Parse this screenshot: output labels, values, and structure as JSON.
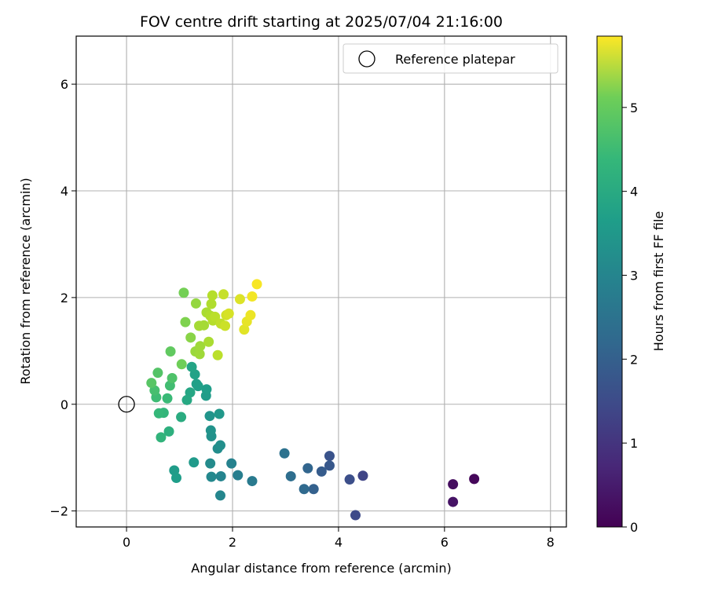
{
  "chart_data": {
    "type": "scatter",
    "title": "FOV centre drift starting at 2025/07/04 21:16:00",
    "xlabel": "Angular distance from reference (arcmin)",
    "ylabel": "Rotation from reference (arcmin)",
    "xlim": [
      -0.95,
      8.3
    ],
    "ylim": [
      -2.3,
      6.9
    ],
    "xticks": [
      0,
      2,
      4,
      6,
      8
    ],
    "yticks": [
      -2,
      0,
      2,
      4,
      6
    ],
    "grid": true,
    "legend": {
      "position": "top-right",
      "entries": [
        "Reference platepar"
      ]
    },
    "reference_point": {
      "x": 0,
      "y": 0
    },
    "colorbar": {
      "label": "Hours from first FF file",
      "colormap": "viridis",
      "range": [
        0,
        5.85
      ],
      "ticks": [
        0,
        1,
        2,
        3,
        4,
        5
      ]
    },
    "points": [
      {
        "x": 6.56,
        "y": -1.4,
        "c": 0.1
      },
      {
        "x": 6.16,
        "y": -1.5,
        "c": 0.2
      },
      {
        "x": 6.16,
        "y": -1.83,
        "c": 0.3
      },
      {
        "x": 4.46,
        "y": -1.34,
        "c": 1.2
      },
      {
        "x": 4.32,
        "y": -2.08,
        "c": 1.3
      },
      {
        "x": 4.21,
        "y": -1.41,
        "c": 1.4
      },
      {
        "x": 3.83,
        "y": -0.97,
        "c": 1.5
      },
      {
        "x": 3.83,
        "y": -1.15,
        "c": 1.6
      },
      {
        "x": 3.68,
        "y": -1.26,
        "c": 1.7
      },
      {
        "x": 3.53,
        "y": -1.59,
        "c": 1.8
      },
      {
        "x": 3.42,
        "y": -1.2,
        "c": 1.9
      },
      {
        "x": 3.35,
        "y": -1.59,
        "c": 2.0
      },
      {
        "x": 3.1,
        "y": -1.35,
        "c": 2.1
      },
      {
        "x": 2.98,
        "y": -0.92,
        "c": 2.2
      },
      {
        "x": 2.37,
        "y": -1.44,
        "c": 2.4
      },
      {
        "x": 2.1,
        "y": -1.33,
        "c": 2.5
      },
      {
        "x": 1.98,
        "y": -1.11,
        "c": 2.6
      },
      {
        "x": 1.78,
        "y": -1.35,
        "c": 2.65
      },
      {
        "x": 1.77,
        "y": -1.71,
        "c": 2.7
      },
      {
        "x": 1.6,
        "y": -1.36,
        "c": 2.75
      },
      {
        "x": 1.58,
        "y": -1.11,
        "c": 2.8
      },
      {
        "x": 1.72,
        "y": -0.83,
        "c": 2.85
      },
      {
        "x": 1.77,
        "y": -0.77,
        "c": 2.9
      },
      {
        "x": 1.6,
        "y": -0.6,
        "c": 2.95
      },
      {
        "x": 1.59,
        "y": -0.49,
        "c": 3.0
      },
      {
        "x": 1.57,
        "y": -0.22,
        "c": 3.05
      },
      {
        "x": 1.75,
        "y": -0.18,
        "c": 3.1
      },
      {
        "x": 1.27,
        "y": -1.09,
        "c": 3.15
      },
      {
        "x": 0.9,
        "y": -1.24,
        "c": 3.2
      },
      {
        "x": 0.94,
        "y": -1.38,
        "c": 3.25
      },
      {
        "x": 1.5,
        "y": 0.16,
        "c": 3.2
      },
      {
        "x": 1.51,
        "y": 0.28,
        "c": 3.25
      },
      {
        "x": 1.32,
        "y": 0.38,
        "c": 3.3
      },
      {
        "x": 1.35,
        "y": 0.34,
        "c": 3.3
      },
      {
        "x": 1.29,
        "y": 0.56,
        "c": 3.35
      },
      {
        "x": 1.23,
        "y": 0.7,
        "c": 3.4
      },
      {
        "x": 1.2,
        "y": 0.22,
        "c": 3.45
      },
      {
        "x": 1.14,
        "y": 0.08,
        "c": 3.5
      },
      {
        "x": 1.03,
        "y": -0.24,
        "c": 3.6
      },
      {
        "x": 0.8,
        "y": -0.51,
        "c": 3.7
      },
      {
        "x": 0.65,
        "y": -0.62,
        "c": 3.8
      },
      {
        "x": 0.7,
        "y": -0.16,
        "c": 3.85
      },
      {
        "x": 0.61,
        "y": -0.17,
        "c": 3.9
      },
      {
        "x": 0.77,
        "y": 0.11,
        "c": 3.95
      },
      {
        "x": 0.56,
        "y": 0.13,
        "c": 4.0
      },
      {
        "x": 0.82,
        "y": 0.35,
        "c": 4.05
      },
      {
        "x": 0.53,
        "y": 0.26,
        "c": 4.1
      },
      {
        "x": 0.86,
        "y": 0.49,
        "c": 4.2
      },
      {
        "x": 0.59,
        "y": 0.59,
        "c": 4.25
      },
      {
        "x": 0.47,
        "y": 0.4,
        "c": 4.3
      },
      {
        "x": 0.83,
        "y": 0.99,
        "c": 4.4
      },
      {
        "x": 1.04,
        "y": 0.75,
        "c": 4.55
      },
      {
        "x": 1.08,
        "y": 2.09,
        "c": 4.6
      },
      {
        "x": 1.11,
        "y": 1.54,
        "c": 4.7
      },
      {
        "x": 1.21,
        "y": 1.25,
        "c": 4.8
      },
      {
        "x": 1.31,
        "y": 1.89,
        "c": 4.9
      },
      {
        "x": 1.3,
        "y": 0.99,
        "c": 4.95
      },
      {
        "x": 1.38,
        "y": 0.94,
        "c": 5.0
      },
      {
        "x": 1.39,
        "y": 1.09,
        "c": 5.0
      },
      {
        "x": 1.37,
        "y": 1.47,
        "c": 5.05
      },
      {
        "x": 1.46,
        "y": 1.48,
        "c": 5.05
      },
      {
        "x": 1.55,
        "y": 1.17,
        "c": 5.1
      },
      {
        "x": 1.51,
        "y": 1.72,
        "c": 5.1
      },
      {
        "x": 1.58,
        "y": 1.66,
        "c": 5.15
      },
      {
        "x": 1.6,
        "y": 1.88,
        "c": 5.15
      },
      {
        "x": 1.62,
        "y": 2.04,
        "c": 5.2
      },
      {
        "x": 1.63,
        "y": 1.57,
        "c": 5.2
      },
      {
        "x": 1.67,
        "y": 1.64,
        "c": 5.25
      },
      {
        "x": 1.72,
        "y": 0.92,
        "c": 5.25
      },
      {
        "x": 1.78,
        "y": 1.51,
        "c": 5.3
      },
      {
        "x": 1.83,
        "y": 2.06,
        "c": 5.35
      },
      {
        "x": 1.86,
        "y": 1.47,
        "c": 5.4
      },
      {
        "x": 1.88,
        "y": 1.67,
        "c": 5.45
      },
      {
        "x": 1.93,
        "y": 1.7,
        "c": 5.5
      },
      {
        "x": 2.14,
        "y": 1.97,
        "c": 5.55
      },
      {
        "x": 2.22,
        "y": 1.4,
        "c": 5.6
      },
      {
        "x": 2.27,
        "y": 1.55,
        "c": 5.65
      },
      {
        "x": 2.34,
        "y": 1.67,
        "c": 5.7
      },
      {
        "x": 2.37,
        "y": 2.02,
        "c": 5.75
      },
      {
        "x": 2.46,
        "y": 2.25,
        "c": 5.8
      }
    ]
  }
}
